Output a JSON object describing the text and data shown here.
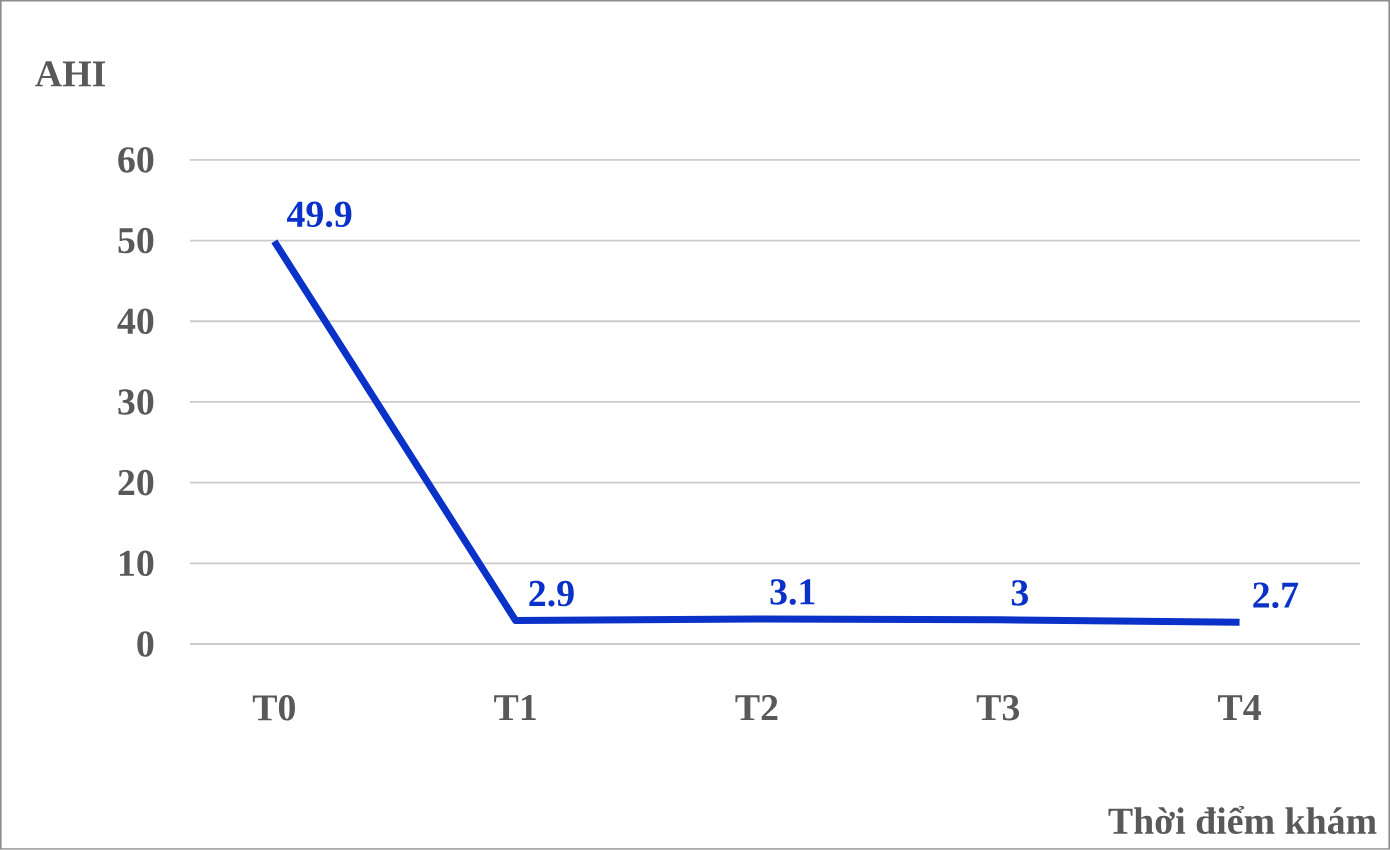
{
  "chart_data": {
    "type": "line",
    "xlabel": "Thời điểm khám",
    "ylabel": "AHI",
    "categories": [
      "T0",
      "T1",
      "T2",
      "T3",
      "T4"
    ],
    "series": [
      {
        "color": "#0a32c8",
        "values": [
          49.9,
          2.9,
          3.1,
          3,
          2.7
        ]
      }
    ],
    "ylim": [
      0,
      60
    ],
    "yticks": [
      0,
      10,
      20,
      30,
      40,
      50,
      60
    ],
    "grid": "y",
    "data_labels": true,
    "marker": "none",
    "line_style": "solid"
  }
}
